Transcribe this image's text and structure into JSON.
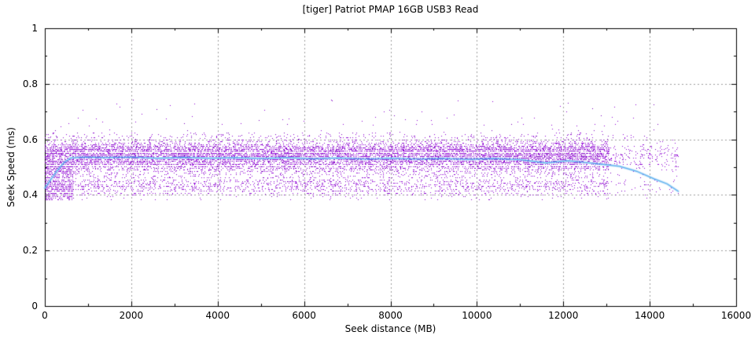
{
  "chart_data": {
    "type": "scatter",
    "title": "[tiger] Patriot PMAP 16GB USB3 Read",
    "xlabel": "Seek distance (MB)",
    "ylabel": "Seek Speed (ms)",
    "xlim": [
      0,
      16000
    ],
    "ylim": [
      0,
      1
    ],
    "x_ticks": {
      "values": [
        0,
        2000,
        4000,
        6000,
        8000,
        10000,
        12000,
        14000,
        16000
      ],
      "labels": [
        "0",
        "2000",
        "4000",
        "6000",
        "8000",
        "10000",
        "12000",
        "14000",
        "16000"
      ]
    },
    "y_ticks": {
      "values": [
        0,
        0.2,
        0.4,
        0.6,
        0.8,
        1
      ],
      "labels": [
        "0",
        "0.2",
        "0.4",
        "0.6",
        "0.8",
        "1"
      ]
    },
    "x_minor_step": 1000,
    "y_minor_step": 0.1,
    "grid": {
      "show": true,
      "style": "dashed",
      "color": "#9e9e9e"
    },
    "colors": {
      "background": "#ffffff",
      "border": "#000000",
      "text": "#000000",
      "points": "#9103d6",
      "points_alt": "#7a00be",
      "avg_line": "#5db1ef"
    },
    "scatter": {
      "seed": 1337,
      "x_data_end": 14660,
      "main_x_range": [
        0,
        13050
      ],
      "main_count": 12500,
      "tail_x_range": [
        13050,
        14660
      ],
      "tail_count": 260,
      "off_grid_fraction": 0.1,
      "off_grid_spread": 0.012,
      "levels": [
        [
          0.624,
          0.5
        ],
        [
          0.618,
          0.7
        ],
        [
          0.612,
          0.9
        ],
        [
          0.606,
          1.2
        ],
        [
          0.6,
          1.6
        ],
        [
          0.594,
          2.2
        ],
        [
          0.588,
          3.0
        ],
        [
          0.582,
          4.5
        ],
        [
          0.576,
          6.5
        ],
        [
          0.57,
          9.0
        ],
        [
          0.564,
          11.0
        ],
        [
          0.558,
          12.0
        ],
        [
          0.552,
          12.0
        ],
        [
          0.546,
          12.0
        ],
        [
          0.54,
          11.0
        ],
        [
          0.534,
          10.0
        ],
        [
          0.528,
          9.0
        ],
        [
          0.522,
          9.0
        ],
        [
          0.516,
          8.0
        ],
        [
          0.51,
          7.0
        ],
        [
          0.504,
          6.0
        ],
        [
          0.498,
          4.5
        ],
        [
          0.492,
          3.2
        ],
        [
          0.486,
          2.4
        ],
        [
          0.48,
          2.0
        ],
        [
          0.474,
          1.7
        ],
        [
          0.468,
          1.5
        ],
        [
          0.462,
          1.8
        ],
        [
          0.456,
          2.2
        ],
        [
          0.45,
          2.6
        ],
        [
          0.444,
          3.0
        ],
        [
          0.438,
          3.2
        ],
        [
          0.432,
          3.2
        ],
        [
          0.426,
          3.0
        ],
        [
          0.42,
          2.8
        ],
        [
          0.414,
          2.6
        ],
        [
          0.408,
          2.0
        ],
        [
          0.402,
          1.0
        ],
        [
          0.396,
          0.35
        ],
        [
          0.39,
          0.2
        ],
        [
          0.384,
          0.15
        ]
      ],
      "left_cluster": {
        "x_range": [
          0,
          650
        ],
        "count": 600,
        "v_min": 0.384,
        "v_max": 0.522
      },
      "high_outliers": {
        "count": 140,
        "x_range": [
          0,
          14200
        ],
        "v_min": 0.6,
        "v_max": 0.745
      }
    },
    "avg_line": {
      "points": [
        [
          0,
          0.425
        ],
        [
          150,
          0.458
        ],
        [
          300,
          0.49
        ],
        [
          450,
          0.517
        ],
        [
          600,
          0.533
        ],
        [
          900,
          0.536
        ],
        [
          1400,
          0.534
        ],
        [
          2000,
          0.536
        ],
        [
          2600,
          0.532
        ],
        [
          3200,
          0.535
        ],
        [
          3800,
          0.532
        ],
        [
          4400,
          0.534
        ],
        [
          5000,
          0.531
        ],
        [
          5600,
          0.534
        ],
        [
          6200,
          0.53
        ],
        [
          6800,
          0.533
        ],
        [
          7400,
          0.529
        ],
        [
          8000,
          0.532
        ],
        [
          8600,
          0.529
        ],
        [
          9200,
          0.531
        ],
        [
          9800,
          0.528
        ],
        [
          10400,
          0.531
        ],
        [
          11000,
          0.527
        ],
        [
          11600,
          0.515
        ],
        [
          12100,
          0.523
        ],
        [
          12500,
          0.517
        ],
        [
          12900,
          0.51
        ],
        [
          13300,
          0.503
        ],
        [
          13700,
          0.485
        ],
        [
          14100,
          0.458
        ],
        [
          14400,
          0.44
        ],
        [
          14660,
          0.413
        ]
      ]
    }
  }
}
